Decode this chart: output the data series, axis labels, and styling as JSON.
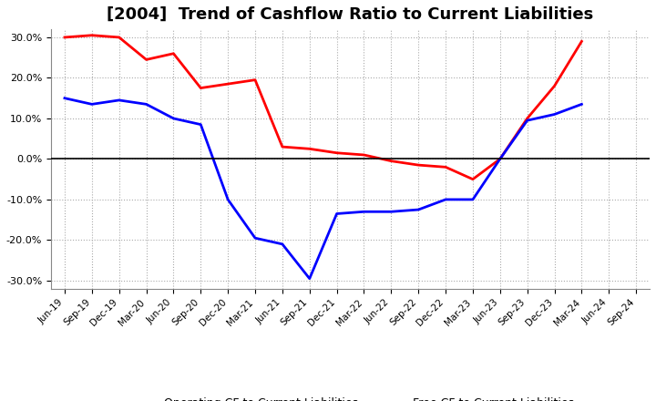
{
  "title": "[2004]  Trend of Cashflow Ratio to Current Liabilities",
  "x_labels": [
    "Jun-19",
    "Sep-19",
    "Dec-19",
    "Mar-20",
    "Jun-20",
    "Sep-20",
    "Dec-20",
    "Mar-21",
    "Jun-21",
    "Sep-21",
    "Dec-21",
    "Mar-22",
    "Jun-22",
    "Sep-22",
    "Dec-22",
    "Mar-23",
    "Jun-23",
    "Sep-23",
    "Dec-23",
    "Mar-24",
    "Jun-24",
    "Sep-24"
  ],
  "operating_cf": [
    30.0,
    30.5,
    30.0,
    24.5,
    26.0,
    17.5,
    18.5,
    19.5,
    3.0,
    2.5,
    1.5,
    1.0,
    -0.5,
    -1.5,
    -2.0,
    -5.0,
    0.0,
    10.0,
    18.0,
    29.0,
    null,
    null
  ],
  "free_cf": [
    15.0,
    13.5,
    14.5,
    13.5,
    10.0,
    8.5,
    -10.0,
    -19.5,
    -21.0,
    -29.5,
    -13.5,
    -13.0,
    -13.0,
    -12.5,
    -10.0,
    -10.0,
    0.0,
    9.5,
    11.0,
    13.5,
    null,
    null
  ],
  "ylim_min": -32,
  "ylim_max": 32,
  "yticks": [
    -30,
    -20,
    -10,
    0,
    10,
    20,
    30
  ],
  "operating_color": "#FF0000",
  "free_color": "#0000FF",
  "background_color": "#FFFFFF",
  "grid_color": "#AAAAAA",
  "legend_operating": "Operating CF to Current Liabilities",
  "legend_free": "Free CF to Current Liabilities",
  "title_fontsize": 13,
  "line_width": 2.0
}
